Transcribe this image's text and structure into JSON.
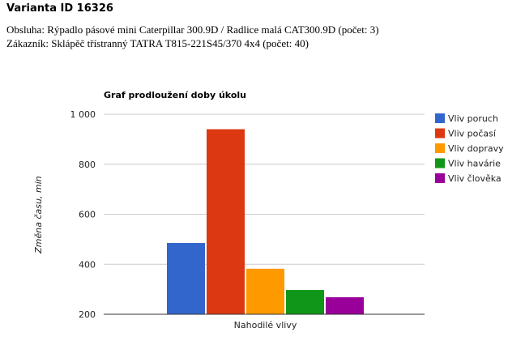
{
  "header": {
    "title": "Varianta ID 16326",
    "line1": "Obsluha: Rýpadlo pásové mini Caterpillar 300.9D / Radlice malá CAT300.9D (počet: 3)",
    "line2": "Zákazník: Sklápěč třístranný TATRA T815-221S45/370 4x4 (počet: 40)"
  },
  "chart_data": {
    "type": "bar",
    "title": "Graf prodloužení doby úkolu",
    "xlabel": "",
    "ylabel": "Změna času, min",
    "categories": [
      "Nahodilé vlivy"
    ],
    "ylim": [
      200,
      1000
    ],
    "yticks": [
      200,
      400,
      600,
      800,
      1000
    ],
    "ytick_labels": [
      "200",
      "400",
      "600",
      "800",
      "1 000"
    ],
    "grid": true,
    "legend_position": "right",
    "series": [
      {
        "name": "Vliv poruch",
        "color": "#3366cc",
        "values": [
          485
        ]
      },
      {
        "name": "Vliv počasí",
        "color": "#dc3912",
        "values": [
          940
        ]
      },
      {
        "name": "Vliv dopravy",
        "color": "#ff9900",
        "values": [
          382
        ]
      },
      {
        "name": "Vliv havárie",
        "color": "#109618",
        "values": [
          297
        ]
      },
      {
        "name": "Vliv člověka",
        "color": "#990099",
        "values": [
          268
        ]
      }
    ]
  }
}
